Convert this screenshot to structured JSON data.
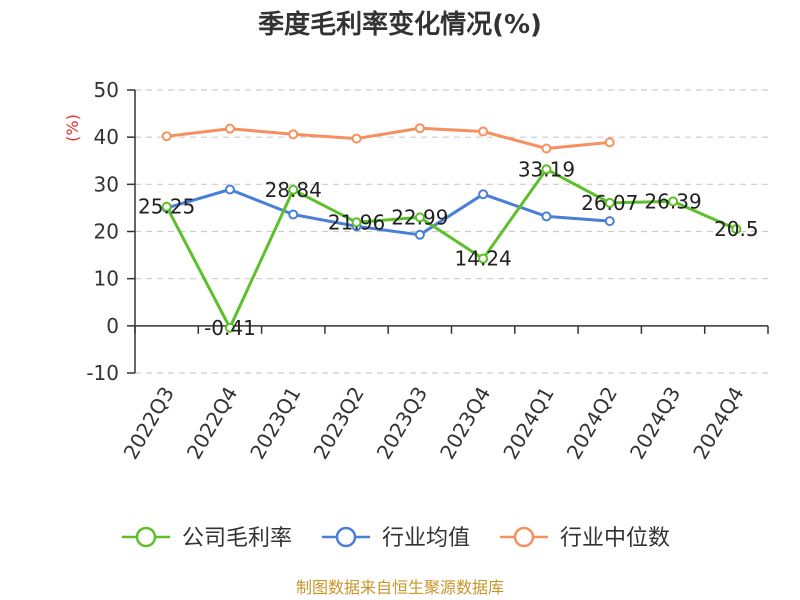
{
  "chart_data": {
    "type": "line",
    "title": "季度毛利率变化情况(%)",
    "ylabel": "(%)",
    "xlabel": "",
    "categories": [
      "2022Q3",
      "2022Q4",
      "2023Q1",
      "2023Q2",
      "2023Q3",
      "2023Q4",
      "2024Q1",
      "2024Q2",
      "2024Q3",
      "2024Q4"
    ],
    "ylim": [
      -10,
      50
    ],
    "yticks": [
      -10,
      0,
      10,
      20,
      30,
      40,
      50
    ],
    "grid": true,
    "legend_position": "bottom",
    "series": [
      {
        "name": "公司毛利率",
        "color": "#5dc02a",
        "values": [
          25.25,
          -0.41,
          28.84,
          21.96,
          22.99,
          14.24,
          33.19,
          26.07,
          26.39,
          20.5
        ],
        "labels": [
          "25.25",
          "-0.41",
          "28.84",
          "21.96",
          "22.99",
          "14.24",
          "33.19",
          "26.07",
          "26.39",
          "20.5"
        ]
      },
      {
        "name": "行业均值",
        "color": "#4a7fd8",
        "values": [
          25.0,
          28.9,
          23.6,
          21.1,
          19.3,
          27.9,
          23.2,
          22.2,
          null,
          null
        ]
      },
      {
        "name": "行业中位数",
        "color": "#f5915e",
        "values": [
          40.2,
          41.8,
          40.6,
          39.7,
          41.9,
          41.2,
          37.6,
          38.9,
          null,
          null
        ]
      }
    ]
  },
  "source": "制图数据来自恒生聚源数据库"
}
